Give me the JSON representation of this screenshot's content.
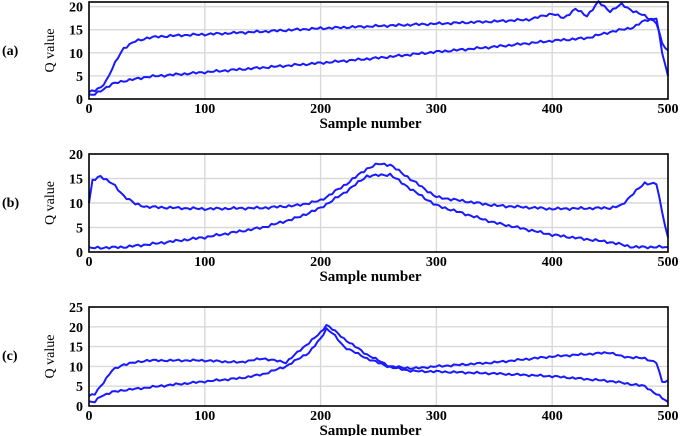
{
  "chart_data": [
    {
      "panel_label": "(a)",
      "type": "line",
      "xlabel": "Sample number",
      "ylabel": "Q value",
      "xlim": [
        0,
        500
      ],
      "ylim": [
        0,
        21
      ],
      "xticks": [
        0,
        100,
        200,
        300,
        400,
        500
      ],
      "yticks": [
        0,
        5,
        10,
        15,
        20
      ],
      "grid": true,
      "color": "#1a1aff",
      "series": [
        {
          "x": [
            0,
            5,
            10,
            15,
            20,
            25,
            30,
            40,
            50,
            60,
            80,
            100,
            150,
            200,
            250,
            300,
            350,
            380,
            400,
            410,
            420,
            430,
            440,
            450,
            460,
            470,
            480,
            490,
            495,
            500
          ],
          "y": [
            1.5,
            1.8,
            2.5,
            4,
            6.5,
            9,
            11,
            12.5,
            13.2,
            13.5,
            13.8,
            14,
            14.6,
            15.3,
            15.8,
            16.3,
            16.8,
            17.2,
            18.5,
            17.5,
            19.5,
            18,
            21,
            19,
            20.5,
            19,
            18,
            16.5,
            12,
            10.5
          ]
        },
        {
          "x": [
            0,
            5,
            10,
            15,
            20,
            25,
            30,
            40,
            50,
            100,
            150,
            200,
            250,
            300,
            350,
            400,
            430,
            450,
            470,
            480,
            490,
            495,
            500
          ],
          "y": [
            0.8,
            1,
            1.8,
            2.5,
            3.2,
            3.6,
            3.9,
            4.3,
            4.8,
            5.8,
            6.8,
            7.8,
            8.9,
            10.2,
            11.3,
            12.6,
            13.2,
            14.5,
            15.5,
            17,
            17.5,
            10,
            5
          ]
        }
      ]
    },
    {
      "panel_label": "(b)",
      "type": "line",
      "xlabel": "Sample number",
      "ylabel": "Q value",
      "xlim": [
        0,
        500
      ],
      "ylim": [
        0,
        20
      ],
      "xticks": [
        0,
        100,
        200,
        300,
        400,
        500
      ],
      "yticks": [
        0,
        5,
        10,
        15,
        20
      ],
      "grid": true,
      "color": "#1a1aff",
      "series": [
        {
          "x": [
            0,
            3,
            10,
            20,
            30,
            40,
            50,
            100,
            150,
            180,
            200,
            220,
            240,
            250,
            260,
            280,
            300,
            350,
            400,
            450,
            460,
            470,
            480,
            490,
            495,
            500
          ],
          "y": [
            10,
            14.5,
            15.5,
            14,
            11.5,
            9.8,
            9.2,
            8.8,
            9,
            9.5,
            10.5,
            13.5,
            17,
            18,
            17.8,
            14.5,
            11.2,
            9.5,
            8.8,
            9,
            9.5,
            12,
            14,
            14,
            8,
            3
          ]
        },
        {
          "x": [
            0,
            30,
            50,
            100,
            150,
            180,
            200,
            220,
            240,
            260,
            280,
            300,
            350,
            400,
            450,
            470,
            500
          ],
          "y": [
            0.8,
            1,
            1.5,
            3,
            5,
            7,
            9,
            12,
            15.5,
            15.8,
            12.5,
            9.5,
            6,
            3.5,
            2,
            1,
            1
          ]
        }
      ]
    },
    {
      "panel_label": "(c)",
      "type": "line",
      "xlabel": "Sample number",
      "ylabel": "Q value",
      "xlim": [
        0,
        500
      ],
      "ylim": [
        0,
        25
      ],
      "xticks": [
        0,
        100,
        200,
        300,
        400,
        500
      ],
      "yticks": [
        0,
        5,
        10,
        15,
        20,
        25
      ],
      "grid": true,
      "color": "#1a1aff",
      "series": [
        {
          "x": [
            0,
            5,
            10,
            20,
            30,
            50,
            80,
            100,
            130,
            150,
            170,
            180,
            190,
            200,
            205,
            210,
            220,
            240,
            260,
            280,
            300,
            350,
            400,
            450,
            460,
            480,
            490,
            495,
            500
          ],
          "y": [
            2.5,
            3,
            5,
            9,
            10.5,
            11.5,
            11.5,
            11.5,
            11,
            12,
            11,
            13.5,
            16,
            18.5,
            20.5,
            19.5,
            17,
            13,
            10,
            9.5,
            10,
            11,
            12.5,
            13.5,
            12.5,
            12,
            11,
            6,
            6.5
          ]
        },
        {
          "x": [
            0,
            5,
            10,
            20,
            30,
            40,
            60,
            100,
            130,
            150,
            170,
            190,
            200,
            205,
            210,
            220,
            240,
            260,
            280,
            300,
            350,
            400,
            450,
            480,
            490,
            500
          ],
          "y": [
            1,
            1,
            2.5,
            3.5,
            4,
            4.3,
            5,
            6.2,
            7,
            8,
            10,
            13.5,
            17,
            19.5,
            18.5,
            15,
            12,
            9.8,
            8.8,
            8.7,
            8.2,
            7.5,
            6.3,
            5,
            3,
            1
          ]
        }
      ]
    }
  ]
}
